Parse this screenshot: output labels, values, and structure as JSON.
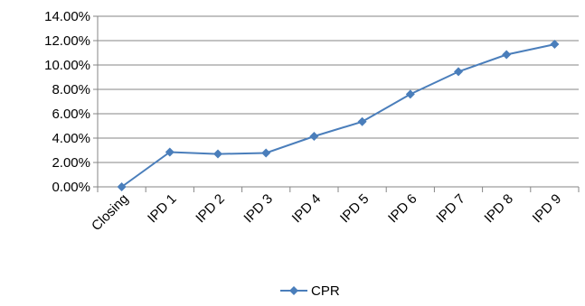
{
  "chart_data": {
    "type": "line",
    "categories": [
      "Closing",
      "IPD 1",
      "IPD 2",
      "IPD 3",
      "IPD 4",
      "IPD 5",
      "IPD 6",
      "IPD 7",
      "IPD 8",
      "IPD 9"
    ],
    "series": [
      {
        "name": "CPR",
        "values": [
          0.0,
          2.85,
          2.7,
          2.78,
          4.15,
          5.35,
          7.6,
          9.45,
          10.85,
          11.7
        ],
        "color": "#4a7ebb",
        "marker": "diamond"
      }
    ],
    "y_ticks": [
      "0.00%",
      "2.00%",
      "4.00%",
      "6.00%",
      "8.00%",
      "10.00%",
      "12.00%",
      "14.00%"
    ],
    "ylim": [
      0,
      14
    ],
    "grid": true,
    "legend_position": "bottom",
    "title": "",
    "xlabel": "",
    "ylabel": ""
  }
}
